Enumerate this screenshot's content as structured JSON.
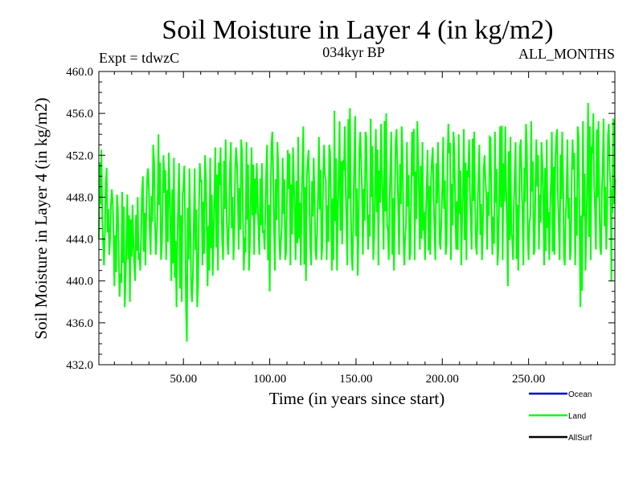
{
  "chart_data": {
    "type": "line",
    "title": "Soil Moisture in Layer 4 (in kg/m2)",
    "subtitle_left": "Expt = tdwzC",
    "subtitle_center": "034kyr BP",
    "subtitle_right": "ALL_MONTHS",
    "xlabel": "Time (in years since start)",
    "ylabel": "Soil Moisture in Layer 4 (in kg/m2)",
    "xlim": [
      1,
      300
    ],
    "ylim": [
      432,
      460
    ],
    "x_ticks": [
      50,
      100,
      150,
      200,
      250
    ],
    "x_tick_labels": [
      "50.00",
      "100.00",
      "150.00",
      "200.00",
      "250.00"
    ],
    "y_ticks": [
      432,
      436,
      440,
      444,
      448,
      452,
      456,
      460
    ],
    "y_tick_labels": [
      "432.0",
      "436.0",
      "440.0",
      "444.0",
      "448.0",
      "452.0",
      "456.0",
      "460.0"
    ],
    "legend": [
      {
        "name": "Ocean",
        "color": "#0000cc"
      },
      {
        "name": "Land",
        "color": "#00ff00"
      },
      {
        "name": "AllSurf",
        "color": "#000000"
      }
    ],
    "series": [
      {
        "name": "Land",
        "color": "#00ff00",
        "x": [
          1,
          4,
          7,
          10,
          13,
          16,
          19,
          22,
          25,
          28,
          31,
          34,
          37,
          40,
          43,
          46,
          49,
          52,
          55,
          58,
          61,
          64,
          67,
          70,
          73,
          76,
          79,
          82,
          85,
          88,
          91,
          94,
          97,
          100,
          103,
          106,
          109,
          112,
          115,
          118,
          121,
          124,
          127,
          130,
          133,
          136,
          139,
          142,
          145,
          148,
          151,
          154,
          157,
          160,
          163,
          166,
          169,
          172,
          175,
          178,
          181,
          184,
          187,
          190,
          193,
          196,
          199,
          202,
          205,
          208,
          211,
          214,
          217,
          220,
          223,
          226,
          229,
          232,
          235,
          238,
          241,
          244,
          247,
          250,
          253,
          256,
          259,
          262,
          265,
          268,
          271,
          274,
          277,
          280,
          283,
          286,
          289,
          292,
          295,
          298,
          300
        ],
        "high": [
          452.5,
          452.6,
          449.0,
          448.5,
          448.0,
          449.0,
          447.5,
          447.0,
          449.0,
          451.0,
          450.5,
          455.5,
          452.5,
          451.5,
          453.0,
          450.5,
          452.0,
          450.0,
          451.5,
          450.0,
          452.5,
          451.5,
          452.0,
          453.5,
          452.0,
          455.0,
          451.5,
          454.0,
          453.0,
          453.5,
          452.0,
          450.5,
          452.0,
          454.0,
          454.5,
          452.0,
          451.5,
          453.5,
          452.0,
          455.5,
          454.0,
          451.0,
          452.5,
          455.0,
          451.0,
          455.0,
          457.5,
          453.0,
          456.5,
          456.5,
          455.0,
          453.5,
          455.0,
          456.0,
          453.0,
          457.0,
          455.0,
          453.5,
          455.5,
          454.0,
          452.5,
          456.0,
          454.5,
          452.0,
          453.0,
          452.5,
          454.0,
          453.5,
          456.5,
          452.0,
          456.0,
          453.0,
          454.0,
          454.5,
          451.5,
          452.5,
          455.0,
          453.5,
          456.0,
          453.5,
          454.0,
          452.5,
          454.5,
          455.5,
          455.0,
          452.0,
          454.5,
          452.5,
          456.0,
          453.0,
          455.5,
          451.5,
          455.5,
          454.0,
          456.5,
          457.5,
          454.5,
          456.0,
          455.0,
          455.0,
          456.0
        ],
        "low": [
          444.0,
          441.5,
          442.5,
          439.5,
          438.5,
          437.5,
          438.0,
          440.0,
          441.0,
          441.5,
          442.5,
          442.5,
          442.0,
          442.0,
          440.0,
          437.5,
          438.0,
          434.2,
          438.0,
          437.5,
          441.5,
          439.5,
          440.5,
          441.0,
          442.0,
          442.5,
          442.0,
          443.0,
          441.0,
          441.0,
          442.5,
          442.5,
          443.0,
          439.0,
          441.0,
          442.0,
          442.0,
          441.5,
          442.0,
          441.5,
          440.0,
          441.5,
          442.0,
          442.0,
          442.0,
          441.0,
          441.0,
          443.5,
          441.5,
          441.0,
          440.5,
          442.5,
          443.0,
          442.0,
          441.5,
          443.0,
          442.0,
          441.0,
          442.5,
          441.5,
          442.0,
          442.0,
          443.0,
          442.0,
          442.5,
          442.0,
          443.0,
          442.5,
          442.0,
          443.0,
          441.5,
          442.0,
          443.0,
          442.5,
          442.0,
          443.0,
          442.5,
          441.5,
          442.0,
          439.5,
          442.0,
          441.0,
          441.5,
          442.0,
          442.5,
          443.0,
          441.5,
          442.0,
          442.5,
          442.0,
          441.5,
          442.0,
          441.5,
          437.5,
          441.0,
          442.0,
          443.0,
          442.5,
          443.0,
          440.0,
          443.5
        ]
      }
    ]
  }
}
